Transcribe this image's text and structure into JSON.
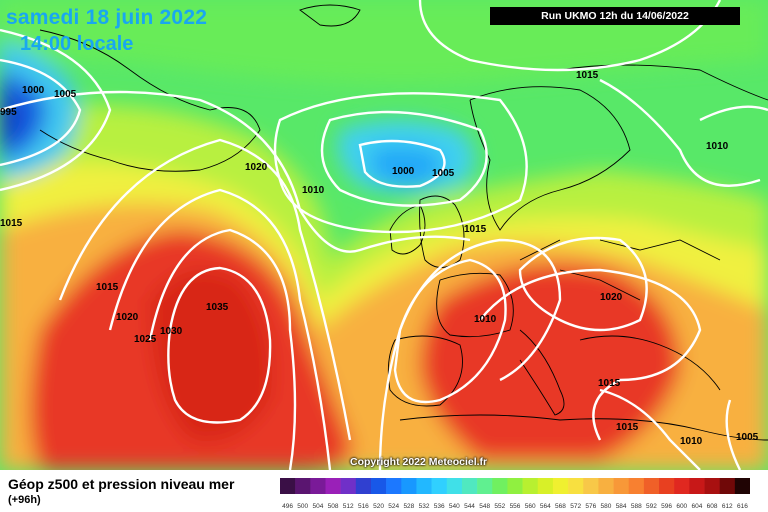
{
  "header": {
    "date_line": "samedi 18 juin 2022",
    "time_line": "14:00 locale",
    "run_info": "Run UKMO 12h du 14/06/2022"
  },
  "copyright": "Copyright 2022 Meteociel.fr",
  "legend": {
    "title": "Géop z500 et pression niveau mer",
    "subtitle": "(+96h)",
    "scale_labels": [
      "496",
      "500",
      "504",
      "508",
      "512",
      "516",
      "520",
      "524",
      "528",
      "532",
      "536",
      "540",
      "544",
      "548",
      "552",
      "556",
      "560",
      "564",
      "568",
      "572",
      "576",
      "580",
      "584",
      "588",
      "592",
      "596",
      "600",
      "604",
      "608",
      "612",
      "616"
    ],
    "scale_colors": [
      "#3a0f46",
      "#5a1570",
      "#7a1a98",
      "#9a20b8",
      "#7030c8",
      "#3040d0",
      "#1858e8",
      "#1c78ff",
      "#1898ff",
      "#22b8ff",
      "#30d0ff",
      "#40e0e8",
      "#50e8c0",
      "#60f090",
      "#70f060",
      "#90f040",
      "#b8f030",
      "#d8f028",
      "#f0f030",
      "#f8e040",
      "#f8c848",
      "#f8b040",
      "#f89838",
      "#f88030",
      "#f06028",
      "#e84020",
      "#e02820",
      "#c81818",
      "#a81010",
      "#700808",
      "#200404"
    ]
  },
  "isobars": [
    "995",
    "1000",
    "1005",
    "1020",
    "1010",
    "1000",
    "1005",
    "1015",
    "1015",
    "1010",
    "1015",
    "1015",
    "1020",
    "1025",
    "1030",
    "1035",
    "1010",
    "1020",
    "1015",
    "1015",
    "1010",
    "1005"
  ],
  "map_colors": {
    "low_deep": "#1030c8",
    "low": "#20a0f0",
    "cyan": "#40d8e8",
    "green": "#50e870",
    "yellowgreen": "#a8f040",
    "yellow": "#f0f040",
    "orange": "#f8a040",
    "red": "#e83020",
    "isobar": "#ffffff",
    "coast": "#000000"
  }
}
